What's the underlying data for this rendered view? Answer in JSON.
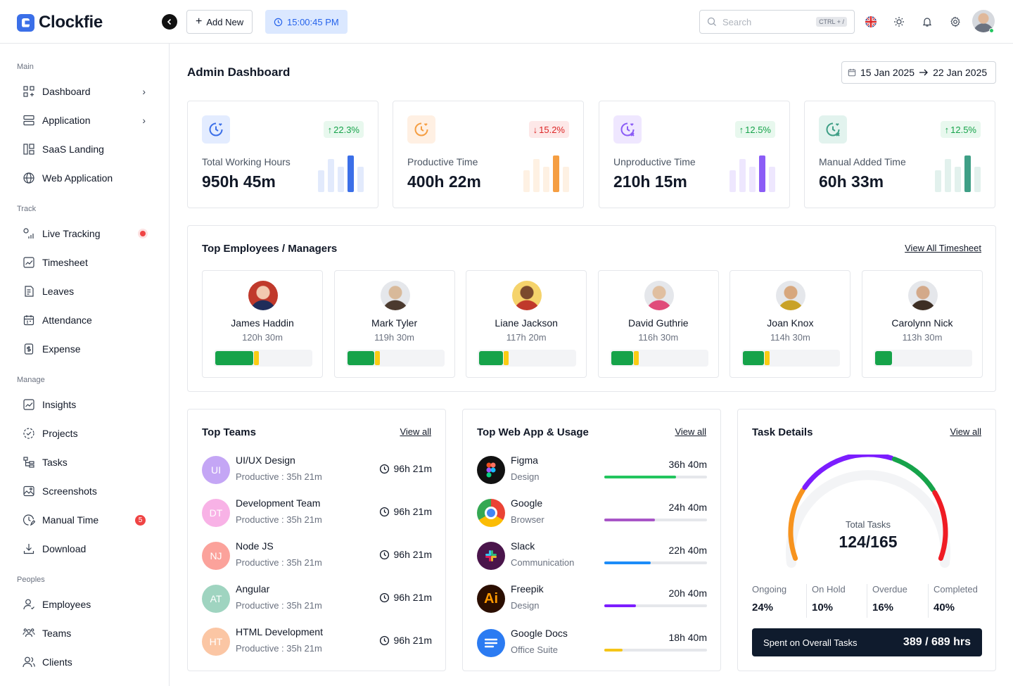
{
  "brand": {
    "name": "Clockfie"
  },
  "header": {
    "add_label": "Add New",
    "clock": "15:00:45 PM",
    "search_placeholder": "Search",
    "search_shortcut": "CTRL + /"
  },
  "sidebar": {
    "sections": [
      {
        "title": "Main",
        "items": [
          {
            "label": "Dashboard",
            "icon": "grid-icon",
            "extra": "chevron"
          },
          {
            "label": "Application",
            "icon": "layers-icon",
            "extra": "chevron"
          },
          {
            "label": "SaaS Landing",
            "icon": "layout-icon"
          },
          {
            "label": "Web Application",
            "icon": "globe-icon"
          }
        ]
      },
      {
        "title": "Track",
        "items": [
          {
            "label": "Live Tracking",
            "icon": "live-icon",
            "extra": "live"
          },
          {
            "label": "Timesheet",
            "icon": "chart-icon"
          },
          {
            "label": "Leaves",
            "icon": "file-icon"
          },
          {
            "label": "Attendance",
            "icon": "calendar-icon"
          },
          {
            "label": "Expense",
            "icon": "receipt-icon"
          }
        ]
      },
      {
        "title": "Manage",
        "items": [
          {
            "label": "Insights",
            "icon": "chart-icon"
          },
          {
            "label": "Projects",
            "icon": "progress-icon"
          },
          {
            "label": "Tasks",
            "icon": "tree-icon"
          },
          {
            "label": "Screenshots",
            "icon": "image-icon"
          },
          {
            "label": "Manual Time",
            "icon": "clock-edit-icon",
            "badge": "5"
          },
          {
            "label": "Download",
            "icon": "download-icon"
          }
        ]
      },
      {
        "title": "Peoples",
        "items": [
          {
            "label": "Employees",
            "icon": "user-icon"
          },
          {
            "label": "Teams",
            "icon": "users-icon"
          },
          {
            "label": "Clients",
            "icon": "clients-icon"
          }
        ]
      }
    ]
  },
  "page": {
    "title": "Admin Dashboard",
    "date_from": "15 Jan 2025",
    "date_to": "22 Jan 2025"
  },
  "stats": [
    {
      "label": "Total Working Hours",
      "value": "950h 45m",
      "change": "22.3%",
      "direction": "up",
      "accent": "#3b6fe8",
      "bars": [
        0.6,
        0.9,
        0.7,
        1.0,
        0.7
      ]
    },
    {
      "label": "Productive Time",
      "value": "400h 22m",
      "change": "15.2%",
      "direction": "down",
      "accent": "#f59e42",
      "bars": [
        0.6,
        0.9,
        0.7,
        1.0,
        0.7
      ]
    },
    {
      "label": "Unproductive Time",
      "value": "210h 15m",
      "change": "12.5%",
      "direction": "up",
      "accent": "#8b5cf6",
      "bars": [
        0.6,
        0.9,
        0.7,
        1.0,
        0.7
      ]
    },
    {
      "label": "Manual Added Time",
      "value": "60h 33m",
      "change": "12.5%",
      "direction": "up",
      "accent": "#3f9f86",
      "bars": [
        0.6,
        0.9,
        0.7,
        1.0,
        0.7
      ]
    }
  ],
  "employees": {
    "title": "Top Employees / Managers",
    "link": "View All Timesheet",
    "items": [
      {
        "name": "James Haddin",
        "hours": "120h 30m",
        "progress": 0.4
      },
      {
        "name": "Mark Tyler",
        "hours": "119h 30m",
        "progress": 0.28
      },
      {
        "name": "Liane Jackson",
        "hours": "117h 20m",
        "progress": 0.25
      },
      {
        "name": "David Guthrie",
        "hours": "116h 30m",
        "progress": 0.23
      },
      {
        "name": "Joan Knox",
        "hours": "114h 30m",
        "progress": 0.22
      },
      {
        "name": "Carolynn Nick",
        "hours": "113h 30m",
        "progress": 0.18
      }
    ]
  },
  "teams": {
    "title": "Top Teams",
    "link": "View all",
    "items": [
      {
        "initials": "UI",
        "name": "UI/UX Design",
        "sub": "Productive : 35h 21m",
        "time": "96h 21m",
        "color": "#c4a6f5"
      },
      {
        "initials": "DT",
        "name": "Development Team",
        "sub": "Productive : 35h 21m",
        "time": "96h 21m",
        "color": "#f8b2e6"
      },
      {
        "initials": "NJ",
        "name": "Node JS",
        "sub": "Productive : 35h 21m",
        "time": "96h 21m",
        "color": "#fba29b"
      },
      {
        "initials": "AT",
        "name": "Angular",
        "sub": "Productive : 35h 21m",
        "time": "96h 21m",
        "color": "#9fd4c0"
      },
      {
        "initials": "HT",
        "name": "HTML Development",
        "sub": "Productive : 35h 21m",
        "time": "96h 21m",
        "color": "#fbc6a4"
      }
    ]
  },
  "apps": {
    "title": "Top Web App & Usage",
    "link": "View all",
    "items": [
      {
        "name": "Figma",
        "sub": "Design",
        "time": "36h 40m",
        "progress": 0.7,
        "color": "#22c55e",
        "icon": "figma-icon"
      },
      {
        "name": "Google",
        "sub": "Browser",
        "time": "24h 40m",
        "progress": 0.49,
        "color": "#a855c7",
        "icon": "chrome-icon"
      },
      {
        "name": "Slack",
        "sub": "Communication",
        "time": "22h 40m",
        "progress": 0.45,
        "color": "#1d8cf8",
        "icon": "slack-icon"
      },
      {
        "name": "Freepik",
        "sub": "Design",
        "time": "20h 40m",
        "progress": 0.31,
        "color": "#7c1dff",
        "icon": "freepik-icon",
        "glyph": "Ai"
      },
      {
        "name": "Google Docs",
        "sub": "Office Suite",
        "time": "18h 40m",
        "progress": 0.18,
        "color": "#f5c518",
        "icon": "docs-icon"
      }
    ]
  },
  "tasks": {
    "title": "Task Details",
    "link": "View all",
    "gauge_label": "Total Tasks",
    "gauge_value": "124/165",
    "stats": [
      {
        "label": "Ongoing",
        "value": "24%"
      },
      {
        "label": "On Hold",
        "value": "10%"
      },
      {
        "label": "Overdue",
        "value": "16%"
      },
      {
        "label": "Completed",
        "value": "40%"
      }
    ],
    "spent_label": "Spent on Overall Tasks",
    "spent_value": "389 / 689 hrs"
  }
}
